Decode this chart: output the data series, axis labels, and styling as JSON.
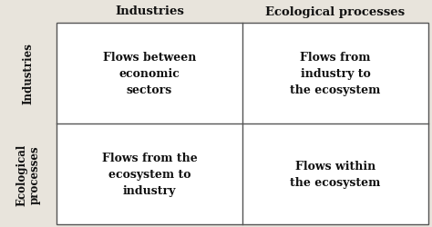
{
  "col_headers": [
    "Industries",
    "Ecological processes"
  ],
  "row_headers": [
    "Industries",
    "Ecological\nprocesses"
  ],
  "cells": [
    [
      "Flows between\neconomic\nsectors",
      "Flows from\nindustry to\nthe ecosystem"
    ],
    [
      "Flows from the\necosystem to\nindustry",
      "Flows within\nthe ecosystem"
    ]
  ],
  "background_color": "#e8e4dc",
  "grid_color": "#555555",
  "cell_bg_color": "#ffffff",
  "text_color": "#111111",
  "col_header_fontsize": 9.5,
  "row_header_fontsize": 8.5,
  "cell_fontsize": 9.0,
  "fig_width": 4.74,
  "fig_height": 2.51,
  "dpi": 100
}
